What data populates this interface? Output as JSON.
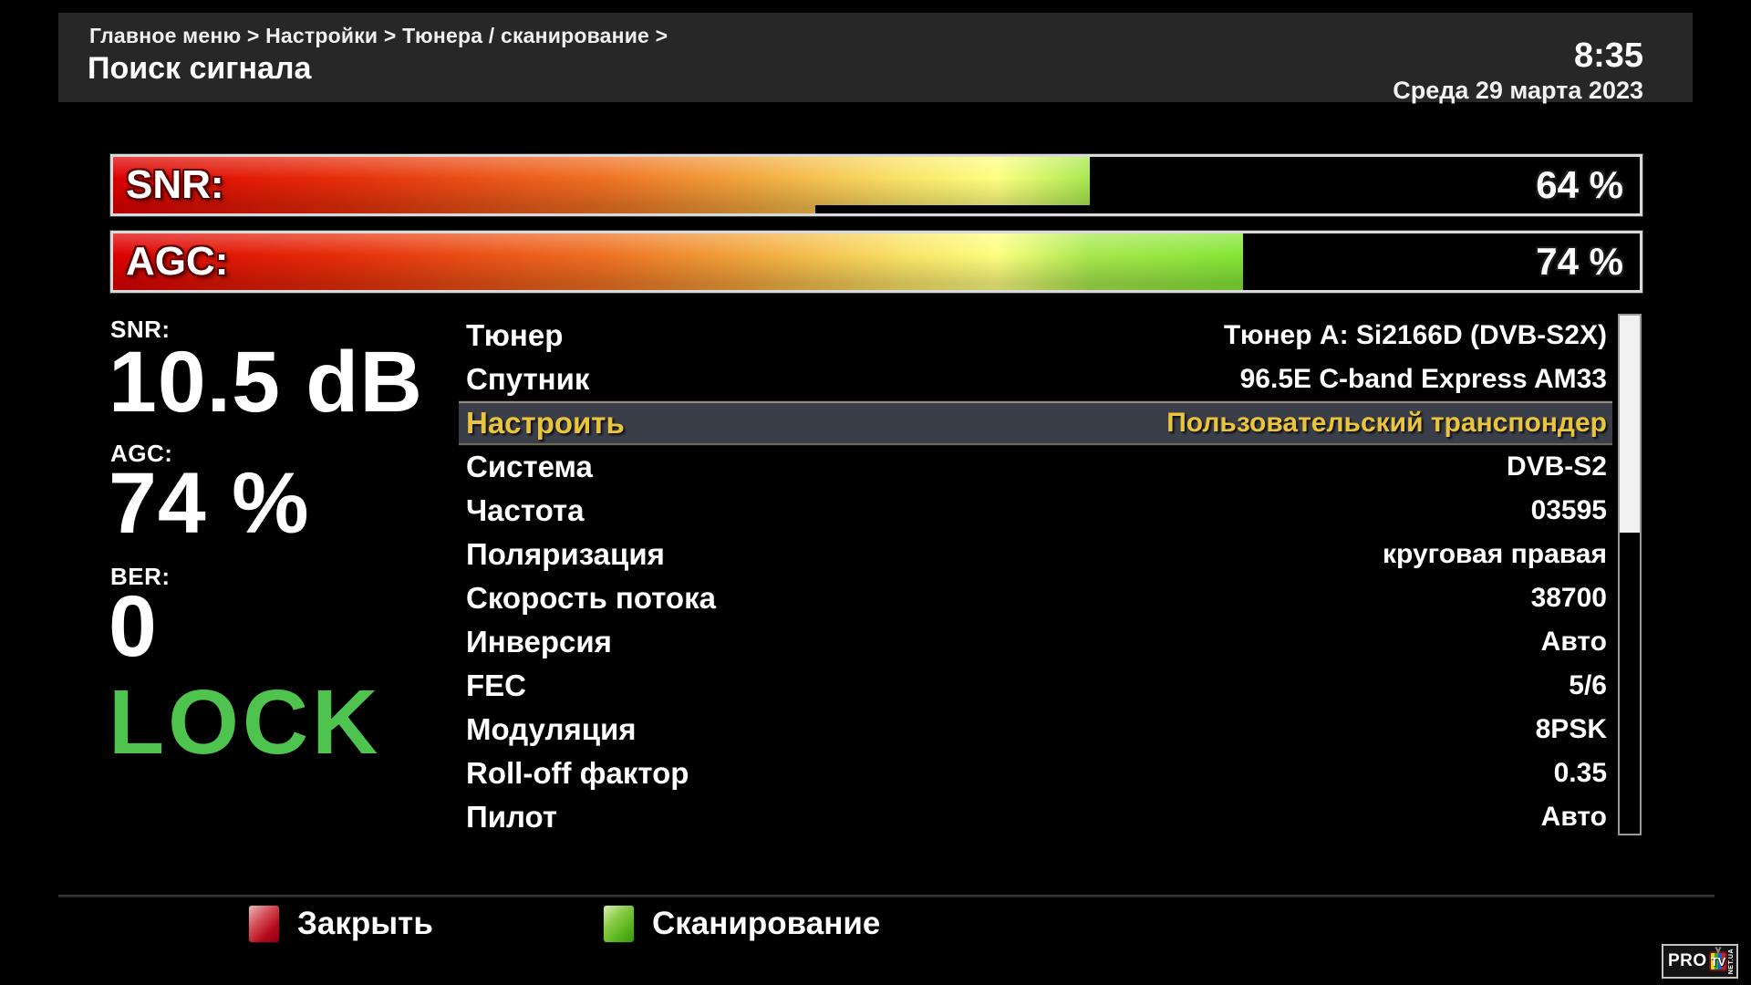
{
  "header": {
    "breadcrumb": "Главное меню > Настройки > Тюнера / сканирование >",
    "title": "Поиск сигнала",
    "time": "8:35",
    "date": "Среда 29 марта 2023"
  },
  "signal_bars": {
    "snr": {
      "label": "SNR:",
      "percent": 64,
      "display": "64 %",
      "peak_from": 46,
      "peak_width": 18
    },
    "agc": {
      "label": "AGC:",
      "percent": 74,
      "display": "74 %"
    }
  },
  "readouts": {
    "snr": {
      "label": "SNR:",
      "value": "10.5 dB"
    },
    "agc": {
      "label": "AGC:",
      "value": "74 %"
    },
    "ber": {
      "label": "BER:",
      "value": "0"
    },
    "lock": {
      "value": "LOCK"
    }
  },
  "settings": {
    "selected_index": 2,
    "rows": [
      {
        "label": "Тюнер",
        "value": "Тюнер A: Si2166D (DVB-S2X)",
        "selected": false
      },
      {
        "label": "Спутник",
        "value": "96.5E C-band Express AM33",
        "selected": false
      },
      {
        "label": "Настроить",
        "value": "Пользовательский транспондер",
        "selected": true
      },
      {
        "label": "Система",
        "value": "DVB-S2",
        "selected": false
      },
      {
        "label": "Частота",
        "value": "03595",
        "selected": false
      },
      {
        "label": "Поляризация",
        "value": "круговая правая",
        "selected": false
      },
      {
        "label": "Скорость потока",
        "value": "38700",
        "selected": false
      },
      {
        "label": "Инверсия",
        "value": "Авто",
        "selected": false
      },
      {
        "label": "FEC",
        "value": "5/6",
        "selected": false
      },
      {
        "label": "Модуляция",
        "value": "8PSK",
        "selected": false
      },
      {
        "label": "Roll-off фактор",
        "value": "0.35",
        "selected": false
      },
      {
        "label": "Пилот",
        "value": "Авто",
        "selected": false
      }
    ]
  },
  "footer": {
    "close": {
      "key_color": "#b50a1c",
      "label": "Закрыть"
    },
    "scan": {
      "key_color": "#57b51a",
      "label": "Сканирование"
    }
  },
  "logo": {
    "pro": "PRO",
    "tv": "TV",
    "suffix": "NET.UA"
  },
  "colors": {
    "lock_green": "#4ec44e",
    "selected_text": "#eac43c",
    "selected_bg": "#3a3e48",
    "header_bg": "#272727",
    "bar_gradient_start": "#dd0000",
    "bar_gradient_end": "#34c80e"
  }
}
